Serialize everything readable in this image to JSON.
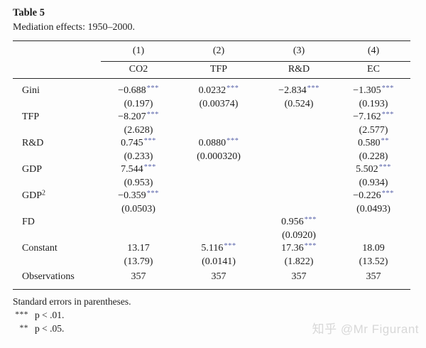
{
  "page": {
    "title": "Table 5",
    "caption": "Mediation effects: 1950–2000.",
    "watermark": "知乎 @Mr Figurant"
  },
  "table": {
    "column_numbers": [
      "(1)",
      "(2)",
      "(3)",
      "(4)"
    ],
    "column_names": [
      "CO2",
      "TFP",
      "R&D",
      "EC"
    ],
    "rows": [
      {
        "label": "Gini",
        "cells": [
          {
            "value": "−0.688",
            "stars": "***",
            "se": "(0.197)"
          },
          {
            "value": "0.0232",
            "stars": "***",
            "se": "(0.00374)"
          },
          {
            "value": "−2.834",
            "stars": "***",
            "se": "(0.524)"
          },
          {
            "value": "−1.305",
            "stars": "***",
            "se": "(0.193)"
          }
        ]
      },
      {
        "label": "TFP",
        "cells": [
          {
            "value": "−8.207",
            "stars": "***",
            "se": "(2.628)"
          },
          null,
          null,
          {
            "value": "−7.162",
            "stars": "***",
            "se": "(2.577)"
          }
        ]
      },
      {
        "label": "R&D",
        "cells": [
          {
            "value": "0.745",
            "stars": "***",
            "se": "(0.233)"
          },
          {
            "value": "0.0880",
            "stars": "***",
            "se": "(0.000320)"
          },
          null,
          {
            "value": "0.580",
            "stars": "**",
            "se": "(0.228)"
          }
        ]
      },
      {
        "label": "GDP",
        "cells": [
          {
            "value": "7.544",
            "stars": "***",
            "se": "(0.953)"
          },
          null,
          null,
          {
            "value": "5.502",
            "stars": "***",
            "se": "(0.934)"
          }
        ]
      },
      {
        "label": "GDP",
        "label_sup": "2",
        "cells": [
          {
            "value": "−0.359",
            "stars": "***",
            "se": "(0.0503)"
          },
          null,
          null,
          {
            "value": "−0.226",
            "stars": "***",
            "se": "(0.0493)"
          }
        ]
      },
      {
        "label": "FD",
        "cells": [
          null,
          null,
          {
            "value": "0.956",
            "stars": "***",
            "se": "(0.0920)"
          },
          null
        ]
      },
      {
        "label": "Constant",
        "cells": [
          {
            "value": "13.17",
            "stars": "",
            "se": "(13.79)"
          },
          {
            "value": "5.116",
            "stars": "***",
            "se": "(0.0141)"
          },
          {
            "value": "17.36",
            "stars": "***",
            "se": "(1.822)"
          },
          {
            "value": "18.09",
            "stars": "",
            "se": "(13.52)"
          }
        ]
      },
      {
        "label": "Observations",
        "single": true,
        "cells": [
          {
            "value": "357"
          },
          {
            "value": "357"
          },
          {
            "value": "357"
          },
          {
            "value": "357"
          }
        ]
      }
    ]
  },
  "footer": {
    "note": "Standard errors in parentheses.",
    "sig_levels": [
      {
        "marker": "***",
        "text": "p < .01."
      },
      {
        "marker": "**",
        "text": "p < .05."
      }
    ]
  },
  "colors": {
    "stars": "#5a64aa",
    "text": "#1e1e1e",
    "rule": "#2a2a2a",
    "watermark": "#d8d8d8"
  }
}
